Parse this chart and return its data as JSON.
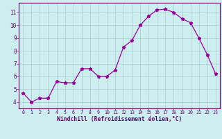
{
  "x": [
    0,
    1,
    2,
    3,
    4,
    5,
    6,
    7,
    8,
    9,
    10,
    11,
    12,
    13,
    14,
    15,
    16,
    17,
    18,
    19,
    20,
    21,
    22,
    23
  ],
  "y": [
    4.7,
    4.0,
    4.3,
    4.3,
    5.6,
    5.5,
    5.5,
    6.6,
    6.6,
    6.0,
    6.0,
    6.5,
    8.3,
    8.8,
    10.0,
    10.7,
    11.2,
    11.25,
    11.0,
    10.5,
    10.2,
    9.0,
    7.7,
    6.2
  ],
  "line_color": "#990099",
  "marker": "*",
  "marker_size": 3.5,
  "bg_color": "#cceeee",
  "grid_color": "#aacccc",
  "xlabel": "Windchill (Refroidissement éolien,°C)",
  "xlabel_color": "#660066",
  "tick_color": "#660066",
  "xlim": [
    -0.5,
    23.5
  ],
  "ylim": [
    3.5,
    11.75
  ],
  "yticks": [
    4,
    5,
    6,
    7,
    8,
    9,
    10,
    11
  ],
  "xticks": [
    0,
    1,
    2,
    3,
    4,
    5,
    6,
    7,
    8,
    9,
    10,
    11,
    12,
    13,
    14,
    15,
    16,
    17,
    18,
    19,
    20,
    21,
    22,
    23
  ]
}
